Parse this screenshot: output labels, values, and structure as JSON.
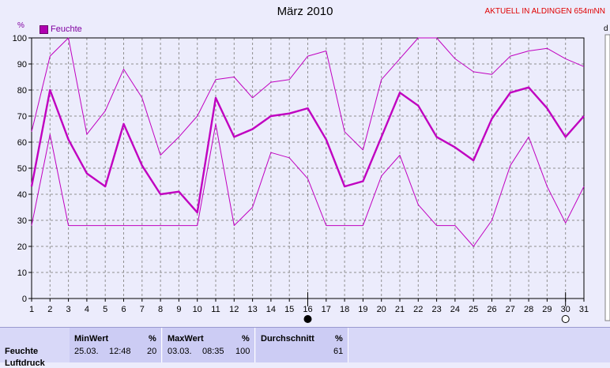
{
  "header": {
    "title": "März 2010",
    "location": "AKTUELL IN ALDINGEN 654mNN",
    "unit_label": "%",
    "edge_label": "d"
  },
  "colors": {
    "series": "#c000c0",
    "grid": "#909090",
    "plot_bg": "#ececfc"
  },
  "markers": {
    "new_moon_day": 16,
    "full_moon_day": 30
  },
  "stats": {
    "row_label": "Feuchte",
    "row_label_2": "Luftdruck",
    "min": {
      "header": "MinWert",
      "unit": "%",
      "date": "25.03.",
      "time": "12:48",
      "value": "20"
    },
    "max": {
      "header": "MaxWert",
      "unit": "%",
      "date": "03.03.",
      "time": "08:35",
      "value": "100"
    },
    "avg": {
      "header": "Durchschnitt",
      "unit": "%",
      "value": "61"
    }
  },
  "chart_data": {
    "type": "line",
    "title": "März 2010",
    "ylabel": "%",
    "xlabel": "",
    "ylim": [
      0,
      100
    ],
    "yticks": [
      0,
      10,
      20,
      30,
      40,
      50,
      60,
      70,
      80,
      90,
      100
    ],
    "x": [
      1,
      2,
      3,
      4,
      5,
      6,
      7,
      8,
      9,
      10,
      11,
      12,
      13,
      14,
      15,
      16,
      17,
      18,
      19,
      20,
      21,
      22,
      23,
      24,
      25,
      26,
      27,
      28,
      29,
      30,
      31
    ],
    "series": [
      {
        "name": "Feuchte",
        "role": "mean",
        "values": [
          43,
          80,
          61,
          48,
          43,
          67,
          51,
          40,
          41,
          33,
          77,
          62,
          65,
          70,
          71,
          73,
          61,
          43,
          45,
          62,
          79,
          74,
          62,
          58,
          53,
          69,
          79,
          81,
          73,
          62,
          70
        ]
      },
      {
        "role": "max",
        "values": [
          64,
          93,
          100,
          63,
          72,
          88,
          77,
          55,
          62,
          70,
          84,
          85,
          77,
          83,
          84,
          93,
          95,
          64,
          57,
          84,
          92,
          100,
          100,
          92,
          87,
          86,
          93,
          95,
          96,
          92,
          89
        ]
      },
      {
        "role": "min",
        "values": [
          28,
          63,
          28,
          28,
          28,
          28,
          28,
          28,
          28,
          28,
          67,
          28,
          35,
          56,
          54,
          46,
          28,
          28,
          28,
          47,
          55,
          36,
          28,
          28,
          20,
          30,
          51,
          62,
          43,
          29,
          43
        ]
      }
    ],
    "legend": "top-left",
    "grid": true
  }
}
